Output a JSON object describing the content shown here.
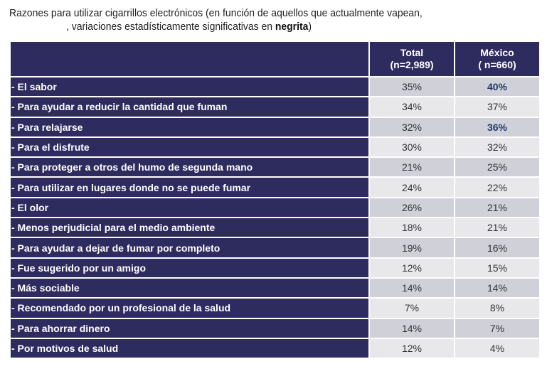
{
  "title": {
    "line1": "Razones para utilizar cigarrillos electrónicos (en función de aquellos que actualmente vapean,",
    "line2_prefix": ", variaciones  estadísticamente significativas en ",
    "line2_bold": "negrita",
    "line2_suffix": ")"
  },
  "table": {
    "columns": [
      {
        "label": "Total",
        "sub": "(n=2,989)"
      },
      {
        "label": "México",
        "sub": "( n=660)"
      }
    ],
    "rows": [
      {
        "label": "- El sabor",
        "total": "35%",
        "mexico": "40%",
        "mexico_significant": true
      },
      {
        "label": "- Para ayudar a reducir la cantidad que fuman",
        "total": "34%",
        "mexico": "37%",
        "mexico_significant": false
      },
      {
        "label": "- Para relajarse",
        "total": "32%",
        "mexico": "36%",
        "mexico_significant": true
      },
      {
        "label": "- Para el disfrute",
        "total": "30%",
        "mexico": "32%",
        "mexico_significant": false
      },
      {
        "label": "- Para proteger a otros del humo de segunda mano",
        "total": "21%",
        "mexico": "25%",
        "mexico_significant": false
      },
      {
        "label": "- Para utilizar en lugares donde no se puede fumar",
        "total": "24%",
        "mexico": "22%",
        "mexico_significant": false
      },
      {
        "label": "- El olor",
        "total": "26%",
        "mexico": "21%",
        "mexico_significant": false
      },
      {
        "label": "- Menos perjudicial para el medio ambiente",
        "total": "18%",
        "mexico": "21%",
        "mexico_significant": false
      },
      {
        "label": "- Para ayudar a dejar de fumar por completo",
        "total": "19%",
        "mexico": "16%",
        "mexico_significant": false
      },
      {
        "label": "- Fue sugerido por un amigo",
        "total": "12%",
        "mexico": "15%",
        "mexico_significant": false
      },
      {
        "label": "- Más sociable",
        "total": "14%",
        "mexico": "14%",
        "mexico_significant": false
      },
      {
        "label": "- Recomendado por un profesional de la salud",
        "total": "7%",
        "mexico": "8%",
        "mexico_significant": false
      },
      {
        "label": "- Para ahorrar dinero",
        "total": "14%",
        "mexico": "7%",
        "mexico_significant": false
      },
      {
        "label": "- Por motivos de salud",
        "total": "12%",
        "mexico": "4%",
        "mexico_significant": false
      }
    ]
  },
  "colors": {
    "header": "#2e2b5f",
    "significant": "#1f3a6e",
    "row_odd": "#d0d0d8",
    "row_even": "#e8e8eb"
  }
}
